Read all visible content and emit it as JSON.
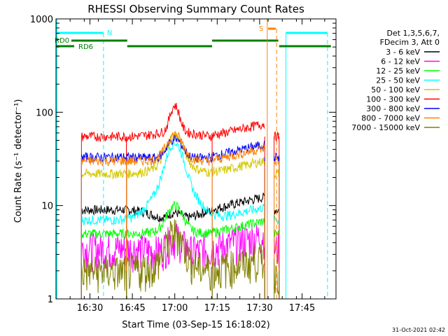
{
  "chart_data": {
    "type": "line",
    "title": "RHESSI Observing Summary Count Rates",
    "xlabel": "Start Time (03-Sep-15 16:18:02)",
    "ylabel": "Count Rate (s⁻¹ detector⁻¹)",
    "yscale": "log",
    "ylim": [
      1,
      1000
    ],
    "xlim_minutes": [
      16.3,
      17.95
    ],
    "x_ticks": [
      "16:30",
      "16:45",
      "17:00",
      "17:15",
      "17:30",
      "17:45"
    ],
    "y_ticks": [
      "1",
      "10",
      "100",
      "1000"
    ],
    "legend_header": [
      "Det 1,3,5,6,7,",
      "FDecim 3, Att 0"
    ],
    "series": [
      {
        "name": "3 - 6 keV",
        "color": "#000000",
        "background": 9,
        "peak": 12
      },
      {
        "name": "6 - 12 keV",
        "color": "#ff00ff",
        "background": 3.5,
        "peak": 6
      },
      {
        "name": "12 - 25 keV",
        "color": "#00ff00",
        "background": 5,
        "peak": 12
      },
      {
        "name": "25 - 50 keV",
        "color": "#00ffff",
        "background": 7,
        "peak": 50
      },
      {
        "name": "50 - 100 keV",
        "color": "#d4c800",
        "background": 22,
        "peak": 65
      },
      {
        "name": "100 - 300 keV",
        "color": "#ff0000",
        "background": 55,
        "peak": 140
      },
      {
        "name": "300 - 800 keV",
        "color": "#0000ff",
        "background": 33,
        "peak": 65
      },
      {
        "name": "800 - 7000 keV",
        "color": "#ff8000",
        "background": 30,
        "peak": 70
      },
      {
        "name": "7000 - 15000 keV",
        "color": "#808000",
        "background": 2,
        "peak": 6
      }
    ],
    "flags": {
      "saa_label": "N",
      "rd0_label": "RD0",
      "rd6_label": "RD6",
      "sflag_label": "S"
    },
    "timestamp": "31-Oct-2021 02:42"
  }
}
